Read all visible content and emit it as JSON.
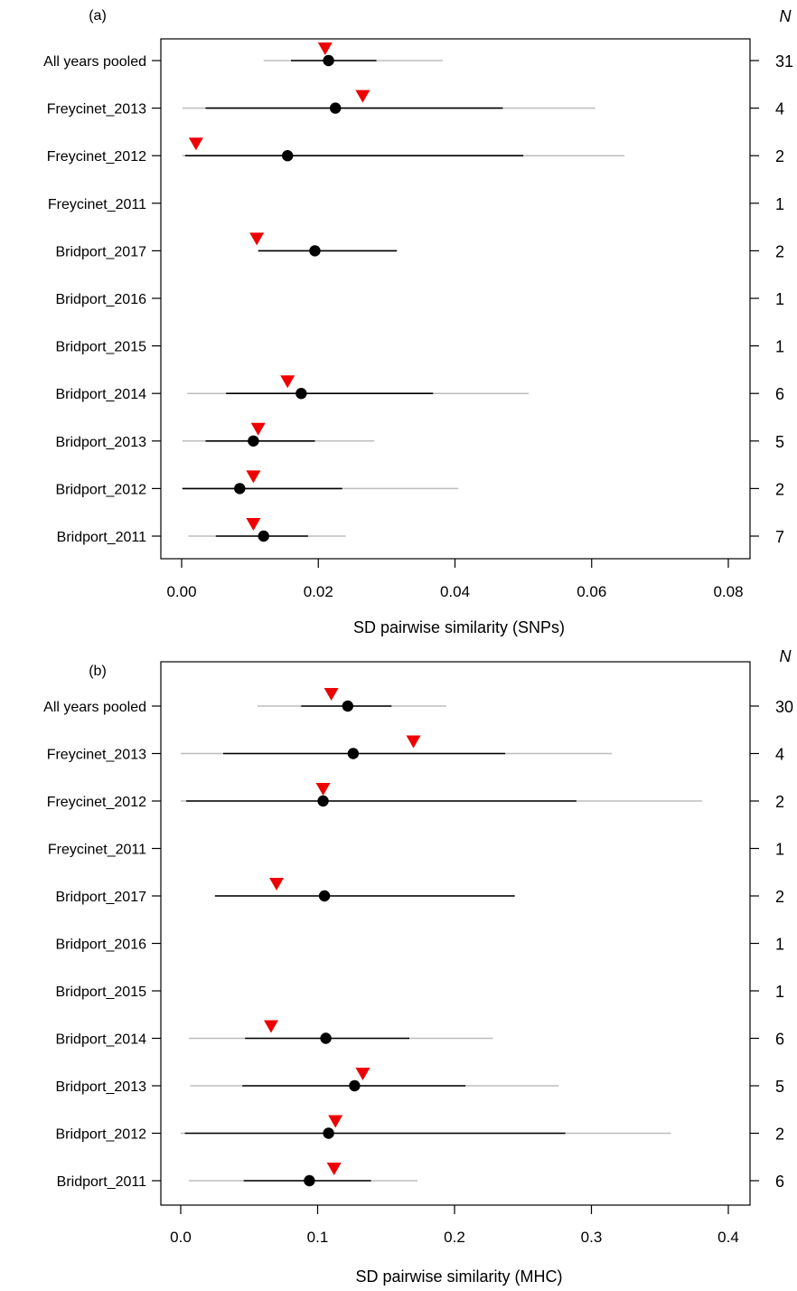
{
  "chart_data": [
    {
      "type": "interval",
      "panel_label": "(a)",
      "xlabel": "SD pairwise similarity (SNPs)",
      "n_header": "N",
      "xlim": [
        0,
        0.08
      ],
      "xticks": [
        "0.00",
        "0.02",
        "0.04",
        "0.06",
        "0.08"
      ],
      "xtick_values": [
        0,
        0.02,
        0.04,
        0.06,
        0.08
      ],
      "rows": [
        {
          "label": "All years pooled",
          "n": "31",
          "point": 0.0215,
          "inner": [
            0.016,
            0.0285
          ],
          "outer": [
            0.012,
            0.0382
          ],
          "triangle": 0.021
        },
        {
          "label": "Freycinet_2013",
          "n": "4",
          "point": 0.0225,
          "inner": [
            0.0035,
            0.047
          ],
          "outer": [
            0.0001,
            0.0605
          ],
          "triangle": 0.0265
        },
        {
          "label": "Freycinet_2012",
          "n": "2",
          "point": 0.0155,
          "inner": [
            0.0005,
            0.05
          ],
          "outer": [
            0.0001,
            0.0648
          ],
          "triangle": 0.0021
        },
        {
          "label": "Freycinet_2011",
          "n": "1",
          "point": null,
          "inner": null,
          "outer": null,
          "triangle": null
        },
        {
          "label": "Bridport_2017",
          "n": "2",
          "point": 0.0195,
          "inner": [
            0.0112,
            0.0315
          ],
          "outer": [
            0.0112,
            0.0315
          ],
          "triangle": 0.011
        },
        {
          "label": "Bridport_2016",
          "n": "1",
          "point": null,
          "inner": null,
          "outer": null,
          "triangle": null
        },
        {
          "label": "Bridport_2015",
          "n": "1",
          "point": null,
          "inner": null,
          "outer": null,
          "triangle": null
        },
        {
          "label": "Bridport_2014",
          "n": "6",
          "point": 0.0175,
          "inner": [
            0.0065,
            0.0368
          ],
          "outer": [
            0.0008,
            0.0508
          ],
          "triangle": 0.0155
        },
        {
          "label": "Bridport_2013",
          "n": "5",
          "point": 0.0105,
          "inner": [
            0.0035,
            0.0195
          ],
          "outer": [
            0.0001,
            0.0282
          ],
          "triangle": 0.0112
        },
        {
          "label": "Bridport_2012",
          "n": "2",
          "point": 0.0085,
          "inner": [
            0.0001,
            0.0235
          ],
          "outer": [
            0.0001,
            0.0405
          ],
          "triangle": 0.0105
        },
        {
          "label": "Bridport_2011",
          "n": "7",
          "point": 0.012,
          "inner": [
            0.005,
            0.0185
          ],
          "outer": [
            0.001,
            0.024
          ],
          "triangle": 0.0105
        }
      ]
    },
    {
      "type": "interval",
      "panel_label": "(b)",
      "xlabel": "SD pairwise similarity (MHC)",
      "n_header": "N",
      "xlim": [
        0,
        0.4
      ],
      "xticks": [
        "0.0",
        "0.1",
        "0.2",
        "0.3",
        "0.4"
      ],
      "xtick_values": [
        0,
        0.1,
        0.2,
        0.3,
        0.4
      ],
      "rows": [
        {
          "label": "All years pooled",
          "n": "30",
          "point": 0.122,
          "inner": [
            0.088,
            0.154
          ],
          "outer": [
            0.056,
            0.194
          ],
          "triangle": 0.11
        },
        {
          "label": "Freycinet_2013",
          "n": "4",
          "point": 0.126,
          "inner": [
            0.031,
            0.237
          ],
          "outer": [
            0.0,
            0.315
          ],
          "triangle": 0.17
        },
        {
          "label": "Freycinet_2012",
          "n": "2",
          "point": 0.104,
          "inner": [
            0.004,
            0.289
          ],
          "outer": [
            0.0,
            0.381
          ],
          "triangle": 0.104
        },
        {
          "label": "Freycinet_2011",
          "n": "1",
          "point": null,
          "inner": null,
          "outer": null,
          "triangle": null
        },
        {
          "label": "Bridport_2017",
          "n": "2",
          "point": 0.105,
          "inner": [
            0.025,
            0.244
          ],
          "outer": [
            0.025,
            0.244
          ],
          "triangle": 0.07
        },
        {
          "label": "Bridport_2016",
          "n": "1",
          "point": null,
          "inner": null,
          "outer": null,
          "triangle": null
        },
        {
          "label": "Bridport_2015",
          "n": "1",
          "point": null,
          "inner": null,
          "outer": null,
          "triangle": null
        },
        {
          "label": "Bridport_2014",
          "n": "6",
          "point": 0.106,
          "inner": [
            0.047,
            0.167
          ],
          "outer": [
            0.006,
            0.228
          ],
          "triangle": 0.066
        },
        {
          "label": "Bridport_2013",
          "n": "5",
          "point": 0.127,
          "inner": [
            0.045,
            0.208
          ],
          "outer": [
            0.007,
            0.276
          ],
          "triangle": 0.133
        },
        {
          "label": "Bridport_2012",
          "n": "2",
          "point": 0.108,
          "inner": [
            0.003,
            0.281
          ],
          "outer": [
            0.0,
            0.358
          ],
          "triangle": 0.113
        },
        {
          "label": "Bridport_2011",
          "n": "6",
          "point": 0.094,
          "inner": [
            0.046,
            0.139
          ],
          "outer": [
            0.006,
            0.173
          ],
          "triangle": 0.112
        }
      ]
    }
  ],
  "colors": {
    "point": "#000000",
    "inner_interval": "#000000",
    "outer_interval": "#bdbdbd",
    "triangle": "#ee0000",
    "frame": "#000000"
  }
}
